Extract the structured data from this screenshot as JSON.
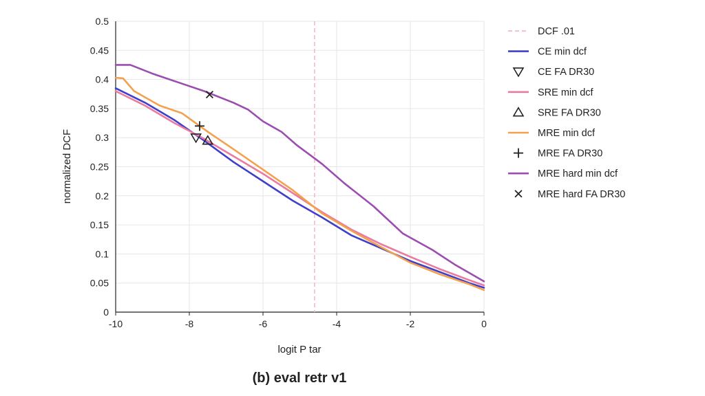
{
  "chart_data": {
    "type": "line",
    "caption": "(b) eval retr v1",
    "xlabel": "logit P tar",
    "ylabel": "normalized DCF",
    "xlim": [
      -10,
      0
    ],
    "ylim": [
      0,
      0.5
    ],
    "x_ticks": [
      -10,
      -8,
      -6,
      -4,
      -2,
      0
    ],
    "y_ticks": [
      0,
      0.05,
      0.1,
      0.15,
      0.2,
      0.25,
      0.3,
      0.35,
      0.4,
      0.45,
      0.5
    ],
    "x_tick_labels": [
      "-10",
      "-8",
      "-6",
      "-4",
      "-2",
      "0"
    ],
    "y_tick_labels": [
      "0",
      "0.05",
      "0.1",
      "0.15",
      "0.2",
      "0.25",
      "0.3",
      "0.35",
      "0.4",
      "0.45",
      "0.5"
    ],
    "grid": true,
    "legend_position": "right",
    "vline": {
      "name": "DCF .01",
      "x": -4.6,
      "color": "#f4b8c8"
    },
    "series": [
      {
        "name": "CE min dcf",
        "color": "#3f3fc9",
        "points": [
          [
            -10,
            0.385
          ],
          [
            -9.2,
            0.36
          ],
          [
            -8.4,
            0.33
          ],
          [
            -7.6,
            0.295
          ],
          [
            -6.8,
            0.258
          ],
          [
            -6.0,
            0.225
          ],
          [
            -5.2,
            0.192
          ],
          [
            -4.4,
            0.163
          ],
          [
            -3.6,
            0.132
          ],
          [
            -2.8,
            0.11
          ],
          [
            -2.0,
            0.088
          ],
          [
            -1.2,
            0.069
          ],
          [
            -0.4,
            0.05
          ],
          [
            0,
            0.042
          ]
        ]
      },
      {
        "name": "SRE min dcf",
        "color": "#e97aa0",
        "points": [
          [
            -10,
            0.38
          ],
          [
            -9.2,
            0.355
          ],
          [
            -8.4,
            0.325
          ],
          [
            -7.6,
            0.298
          ],
          [
            -6.8,
            0.268
          ],
          [
            -6.0,
            0.238
          ],
          [
            -5.2,
            0.205
          ],
          [
            -4.4,
            0.172
          ],
          [
            -3.6,
            0.142
          ],
          [
            -2.8,
            0.117
          ],
          [
            -2.0,
            0.095
          ],
          [
            -1.2,
            0.074
          ],
          [
            -0.4,
            0.055
          ],
          [
            0,
            0.046
          ]
        ]
      },
      {
        "name": "MRE min dcf",
        "color": "#f2a14e",
        "points": [
          [
            -10,
            0.403
          ],
          [
            -9.8,
            0.402
          ],
          [
            -9.5,
            0.38
          ],
          [
            -8.8,
            0.355
          ],
          [
            -8.2,
            0.342
          ],
          [
            -7.5,
            0.31
          ],
          [
            -6.8,
            0.28
          ],
          [
            -6.0,
            0.245
          ],
          [
            -5.2,
            0.21
          ],
          [
            -4.4,
            0.17
          ],
          [
            -3.6,
            0.14
          ],
          [
            -2.8,
            0.112
          ],
          [
            -2.0,
            0.085
          ],
          [
            -1.2,
            0.065
          ],
          [
            -0.4,
            0.048
          ],
          [
            0,
            0.038
          ]
        ]
      },
      {
        "name": "MRE hard min dcf",
        "color": "#9b4db0",
        "points": [
          [
            -10,
            0.425
          ],
          [
            -9.6,
            0.425
          ],
          [
            -9.0,
            0.41
          ],
          [
            -8.3,
            0.395
          ],
          [
            -7.6,
            0.38
          ],
          [
            -6.8,
            0.36
          ],
          [
            -6.4,
            0.348
          ],
          [
            -6.0,
            0.328
          ],
          [
            -5.5,
            0.31
          ],
          [
            -5.1,
            0.288
          ],
          [
            -4.4,
            0.255
          ],
          [
            -3.8,
            0.222
          ],
          [
            -3.0,
            0.182
          ],
          [
            -2.2,
            0.135
          ],
          [
            -1.4,
            0.107
          ],
          [
            -0.8,
            0.082
          ],
          [
            0,
            0.053
          ]
        ]
      }
    ],
    "markers": [
      {
        "name": "CE FA DR30",
        "symbol": "triangle-down",
        "x": -7.82,
        "y": 0.3,
        "color": "#222222"
      },
      {
        "name": "SRE FA DR30",
        "symbol": "triangle-up",
        "x": -7.5,
        "y": 0.295,
        "color": "#222222"
      },
      {
        "name": "MRE FA DR30",
        "symbol": "plus",
        "x": -7.72,
        "y": 0.32,
        "color": "#222222"
      },
      {
        "name": "MRE hard FA DR30",
        "symbol": "x",
        "x": -7.45,
        "y": 0.374,
        "color": "#222222"
      }
    ],
    "legend": [
      {
        "label": "DCF .01",
        "kind": "dashed-line",
        "color": "#f4b8c8"
      },
      {
        "label": "CE min dcf",
        "kind": "line",
        "color": "#3f3fc9"
      },
      {
        "label": "CE FA DR30",
        "kind": "triangle-down",
        "color": "#222222"
      },
      {
        "label": "SRE min dcf",
        "kind": "line",
        "color": "#e97aa0"
      },
      {
        "label": "SRE FA DR30",
        "kind": "triangle-up",
        "color": "#222222"
      },
      {
        "label": "MRE min dcf",
        "kind": "line",
        "color": "#f2a14e"
      },
      {
        "label": "MRE FA DR30",
        "kind": "plus",
        "color": "#222222"
      },
      {
        "label": "MRE hard min dcf",
        "kind": "line",
        "color": "#9b4db0"
      },
      {
        "label": "MRE hard FA DR30",
        "kind": "x",
        "color": "#222222"
      }
    ]
  }
}
